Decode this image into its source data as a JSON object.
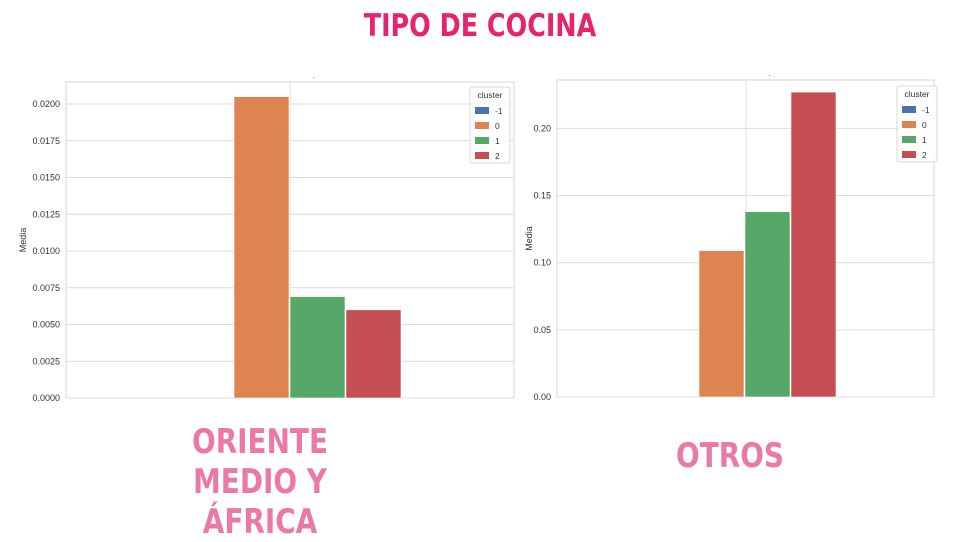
{
  "title": "TIPO DE COCINA",
  "chart_data": [
    {
      "type": "bar",
      "caption": "ORIENTE MEDIO Y ÁFRICA",
      "caption_lines": [
        "ORIENTE MEDIO Y",
        "ÁFRICA"
      ],
      "top_label": ".",
      "ylabel": "Media",
      "ylim": [
        0,
        0.0215
      ],
      "yticks": [
        0.0,
        0.0025,
        0.005,
        0.0075,
        0.01,
        0.0125,
        0.015,
        0.0175,
        0.02
      ],
      "ytick_labels": [
        "0.0000",
        "0.0025",
        "0.0050",
        "0.0075",
        "0.0100",
        "0.0125",
        "0.0150",
        "0.0175",
        "0.0200"
      ],
      "grid": true,
      "legend_title": "cluster",
      "legend_position": "top-right",
      "series": [
        {
          "name": "-1",
          "value": 0,
          "color": "#4c72b0"
        },
        {
          "name": "0",
          "value": 0.0205,
          "color": "#dd8452"
        },
        {
          "name": "1",
          "value": 0.0069,
          "color": "#55a868"
        },
        {
          "name": "2",
          "value": 0.006,
          "color": "#c44e52"
        }
      ]
    },
    {
      "type": "bar",
      "caption": "OTROS",
      "caption_lines": [
        "OTROS"
      ],
      "top_label": ".",
      "ylabel": "Media",
      "ylim": [
        0,
        0.236
      ],
      "yticks": [
        0.0,
        0.05,
        0.1,
        0.15,
        0.2
      ],
      "ytick_labels": [
        "0.00",
        "0.05",
        "0.10",
        "0.15",
        "0.20"
      ],
      "grid": true,
      "legend_title": "cluster",
      "legend_position": "top-right",
      "series": [
        {
          "name": "-1",
          "value": 0,
          "color": "#4c72b0"
        },
        {
          "name": "0",
          "value": 0.109,
          "color": "#dd8452"
        },
        {
          "name": "1",
          "value": 0.138,
          "color": "#55a868"
        },
        {
          "name": "2",
          "value": 0.227,
          "color": "#c44e52"
        }
      ]
    }
  ]
}
